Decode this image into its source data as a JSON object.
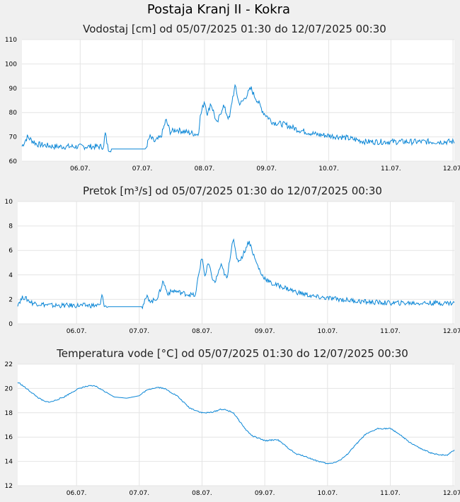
{
  "station": {
    "title": "Postaja Kranj II - Kokra"
  },
  "colors": {
    "series": "#0a86d6",
    "background": "#f0f0f0",
    "plot": "#ffffff",
    "grid": "#e4e4e4"
  },
  "chart_data": [
    {
      "type": "line",
      "title": "Vodostaj [cm] od 05/07/2025 01:30 do 12/07/2025 00:30",
      "ylabel": "cm",
      "ylim": [
        60,
        110
      ],
      "yticks": [
        60,
        70,
        80,
        90,
        100,
        110
      ],
      "xlabels": [
        "06.07.",
        "07.07.",
        "08.07.",
        "09.07.",
        "10.07.",
        "11.07.",
        "12.07."
      ],
      "xlabel_days": [
        1,
        2,
        3,
        4,
        5,
        6,
        7
      ],
      "xlim_days": [
        0.0625,
        7.0208
      ],
      "noise": 1.2,
      "series": [
        {
          "name": "Vodostaj",
          "x": [
            0.06,
            0.15,
            0.3,
            0.6,
            0.9,
            1.2,
            1.38,
            1.4,
            1.45,
            1.6,
            1.9,
            2.05,
            2.12,
            2.2,
            2.3,
            2.38,
            2.45,
            2.55,
            2.7,
            2.9,
            2.93,
            3.0,
            3.05,
            3.1,
            3.15,
            3.2,
            3.3,
            3.4,
            3.45,
            3.5,
            3.55,
            3.6,
            3.65,
            3.75,
            3.8,
            3.85,
            3.95,
            4.1,
            4.3,
            4.5,
            4.8,
            5.2,
            5.6,
            6.0,
            6.5,
            7.0
          ],
          "y": [
            66,
            70,
            67,
            66,
            66,
            66,
            66,
            72,
            65,
            65,
            65,
            65,
            70,
            68,
            70,
            77,
            72,
            73,
            72,
            71,
            78,
            85,
            79,
            84,
            80,
            75,
            83,
            77,
            86,
            91,
            84,
            84,
            86,
            90,
            87,
            85,
            80,
            76,
            75,
            73,
            71,
            70,
            68,
            68,
            68,
            68
          ]
        }
      ]
    },
    {
      "type": "line",
      "title": "Pretok [m³/s] od 05/07/2025 01:30 do 12/07/2025 00:30",
      "ylabel": "m³/s",
      "ylim": [
        0,
        10
      ],
      "yticks": [
        0,
        2,
        4,
        6,
        8,
        10
      ],
      "xlabels": [
        "06.07.",
        "07.07.",
        "08.07.",
        "09.07.",
        "10.07.",
        "11.07.",
        "12.07."
      ],
      "xlabel_days": [
        1,
        2,
        3,
        4,
        5,
        6,
        7
      ],
      "xlim_days": [
        0.0625,
        7.0208
      ],
      "noise": 0.2,
      "series": [
        {
          "name": "Pretok",
          "x": [
            0.06,
            0.15,
            0.3,
            0.6,
            0.9,
            1.2,
            1.38,
            1.4,
            1.45,
            1.6,
            1.9,
            2.05,
            2.12,
            2.2,
            2.3,
            2.38,
            2.45,
            2.55,
            2.7,
            2.9,
            2.93,
            3.0,
            3.05,
            3.1,
            3.15,
            3.2,
            3.3,
            3.4,
            3.45,
            3.5,
            3.55,
            3.6,
            3.65,
            3.75,
            3.8,
            3.85,
            3.95,
            4.1,
            4.3,
            4.5,
            4.8,
            5.2,
            5.6,
            6.0,
            6.5,
            7.0
          ],
          "y": [
            1.6,
            2.2,
            1.7,
            1.5,
            1.5,
            1.5,
            1.5,
            2.4,
            1.4,
            1.4,
            1.4,
            1.4,
            2.2,
            1.8,
            2.2,
            3.5,
            2.5,
            2.7,
            2.5,
            2.3,
            3.6,
            5.5,
            3.8,
            5.0,
            4.0,
            3.3,
            4.8,
            3.6,
            5.6,
            7.2,
            5.2,
            5.2,
            5.6,
            6.8,
            6.0,
            5.2,
            4.0,
            3.3,
            3.0,
            2.6,
            2.2,
            2.0,
            1.8,
            1.7,
            1.7,
            1.7
          ]
        }
      ]
    },
    {
      "type": "line",
      "title": "Temperatura vode [°C] od 05/07/2025 01:30 do 12/07/2025 00:30",
      "ylabel": "°C",
      "ylim": [
        12,
        22
      ],
      "yticks": [
        12,
        14,
        16,
        18,
        20,
        22
      ],
      "xlabels": [
        "06.07.",
        "07.07.",
        "08.07.",
        "09.07.",
        "10.07.",
        "11.07.",
        "12.07."
      ],
      "xlabel_days": [
        1,
        2,
        3,
        4,
        5,
        6,
        7
      ],
      "xlim_days": [
        0.0625,
        7.0208
      ],
      "noise": 0.05,
      "series": [
        {
          "name": "Temperatura vode",
          "x": [
            0.06,
            0.1,
            0.2,
            0.4,
            0.5,
            0.6,
            0.8,
            1.0,
            1.1,
            1.2,
            1.3,
            1.4,
            1.6,
            1.8,
            2.0,
            2.1,
            2.2,
            2.3,
            2.4,
            2.6,
            2.8,
            3.0,
            3.1,
            3.2,
            3.3,
            3.4,
            3.5,
            3.6,
            3.7,
            3.8,
            4.0,
            4.2,
            4.4,
            4.5,
            4.6,
            4.7,
            4.8,
            5.0,
            5.1,
            5.2,
            5.3,
            5.4,
            5.6,
            5.8,
            6.0,
            6.1,
            6.3,
            6.5,
            6.7,
            6.9,
            7.0
          ],
          "y": [
            20.5,
            20.4,
            20.0,
            19.2,
            18.9,
            18.9,
            19.3,
            19.9,
            20.1,
            20.2,
            20.2,
            19.9,
            19.3,
            19.2,
            19.4,
            19.8,
            20.0,
            20.1,
            20.0,
            19.4,
            18.4,
            18.0,
            18.0,
            18.1,
            18.3,
            18.2,
            18.0,
            17.3,
            16.6,
            16.1,
            15.7,
            15.8,
            15.0,
            14.6,
            14.5,
            14.3,
            14.1,
            13.8,
            13.9,
            14.1,
            14.5,
            15.1,
            16.2,
            16.7,
            16.7,
            16.4,
            15.6,
            15.0,
            14.6,
            14.5,
            14.9
          ]
        }
      ]
    }
  ]
}
